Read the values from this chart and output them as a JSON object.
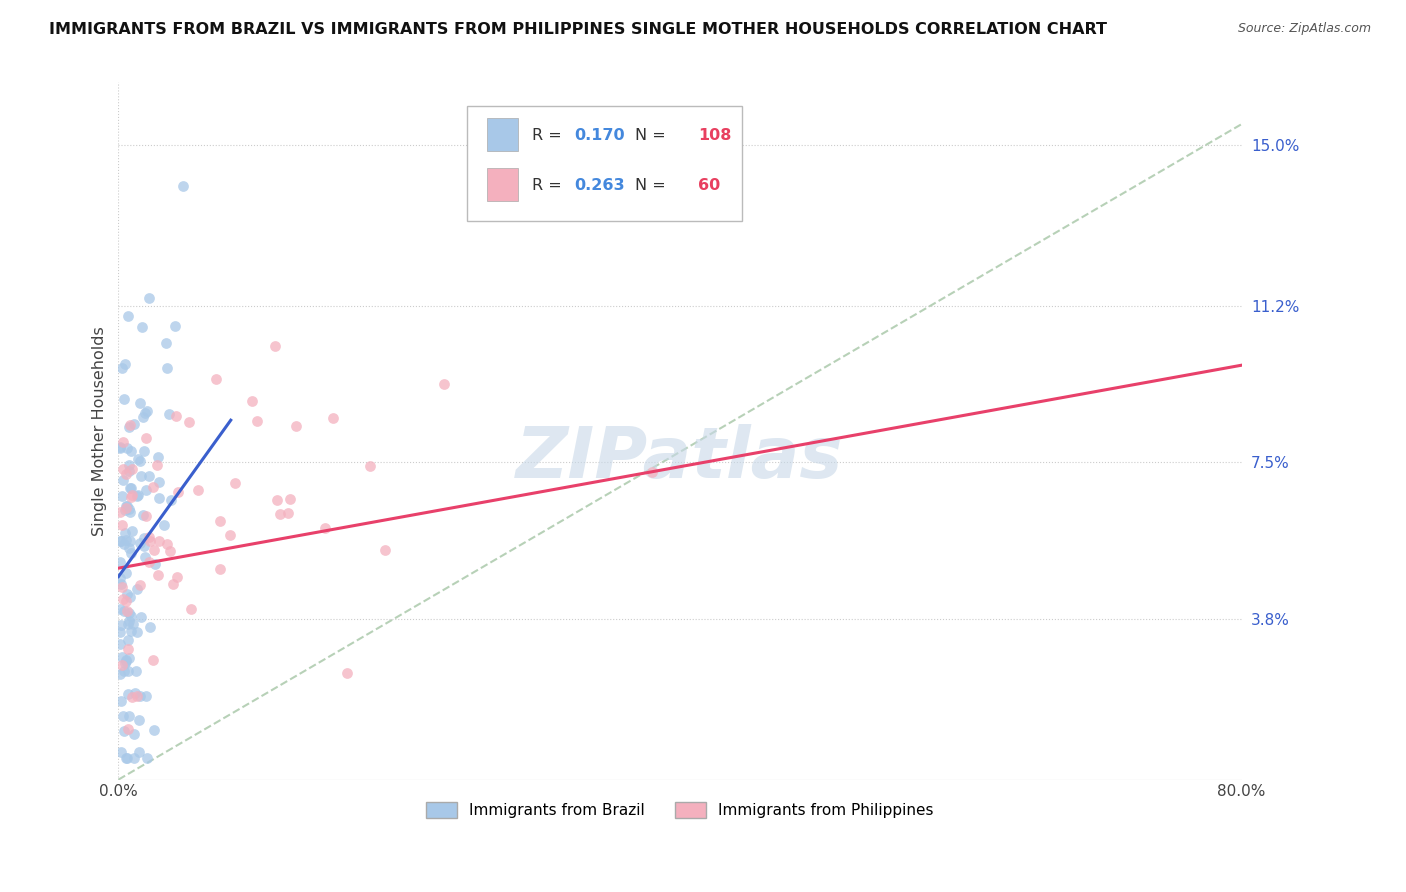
{
  "title": "IMMIGRANTS FROM BRAZIL VS IMMIGRANTS FROM PHILIPPINES SINGLE MOTHER HOUSEHOLDS CORRELATION CHART",
  "source": "Source: ZipAtlas.com",
  "ylabel": "Single Mother Households",
  "right_yticks": [
    "15.0%",
    "11.2%",
    "7.5%",
    "3.8%"
  ],
  "right_ytick_values": [
    0.15,
    0.112,
    0.075,
    0.038
  ],
  "xmin": 0.0,
  "xmax": 0.8,
  "ymin": 0.0,
  "ymax": 0.165,
  "brazil_R": 0.17,
  "brazil_N": 108,
  "philippines_R": 0.263,
  "philippines_N": 60,
  "brazil_color": "#a8c8e8",
  "philippines_color": "#f4b0be",
  "brazil_line_color": "#3a5fcd",
  "philippines_line_color": "#e8406a",
  "dashed_line_color": "#b0ccb0",
  "watermark_color": "#c8d8e8",
  "legend_box_color": "#dddddd",
  "brazil_line_y0": 0.048,
  "brazil_line_y1": 0.085,
  "philippines_line_y0": 0.05,
  "philippines_line_y1": 0.098,
  "dashed_line_y0": 0.0,
  "dashed_line_y1": 0.155
}
